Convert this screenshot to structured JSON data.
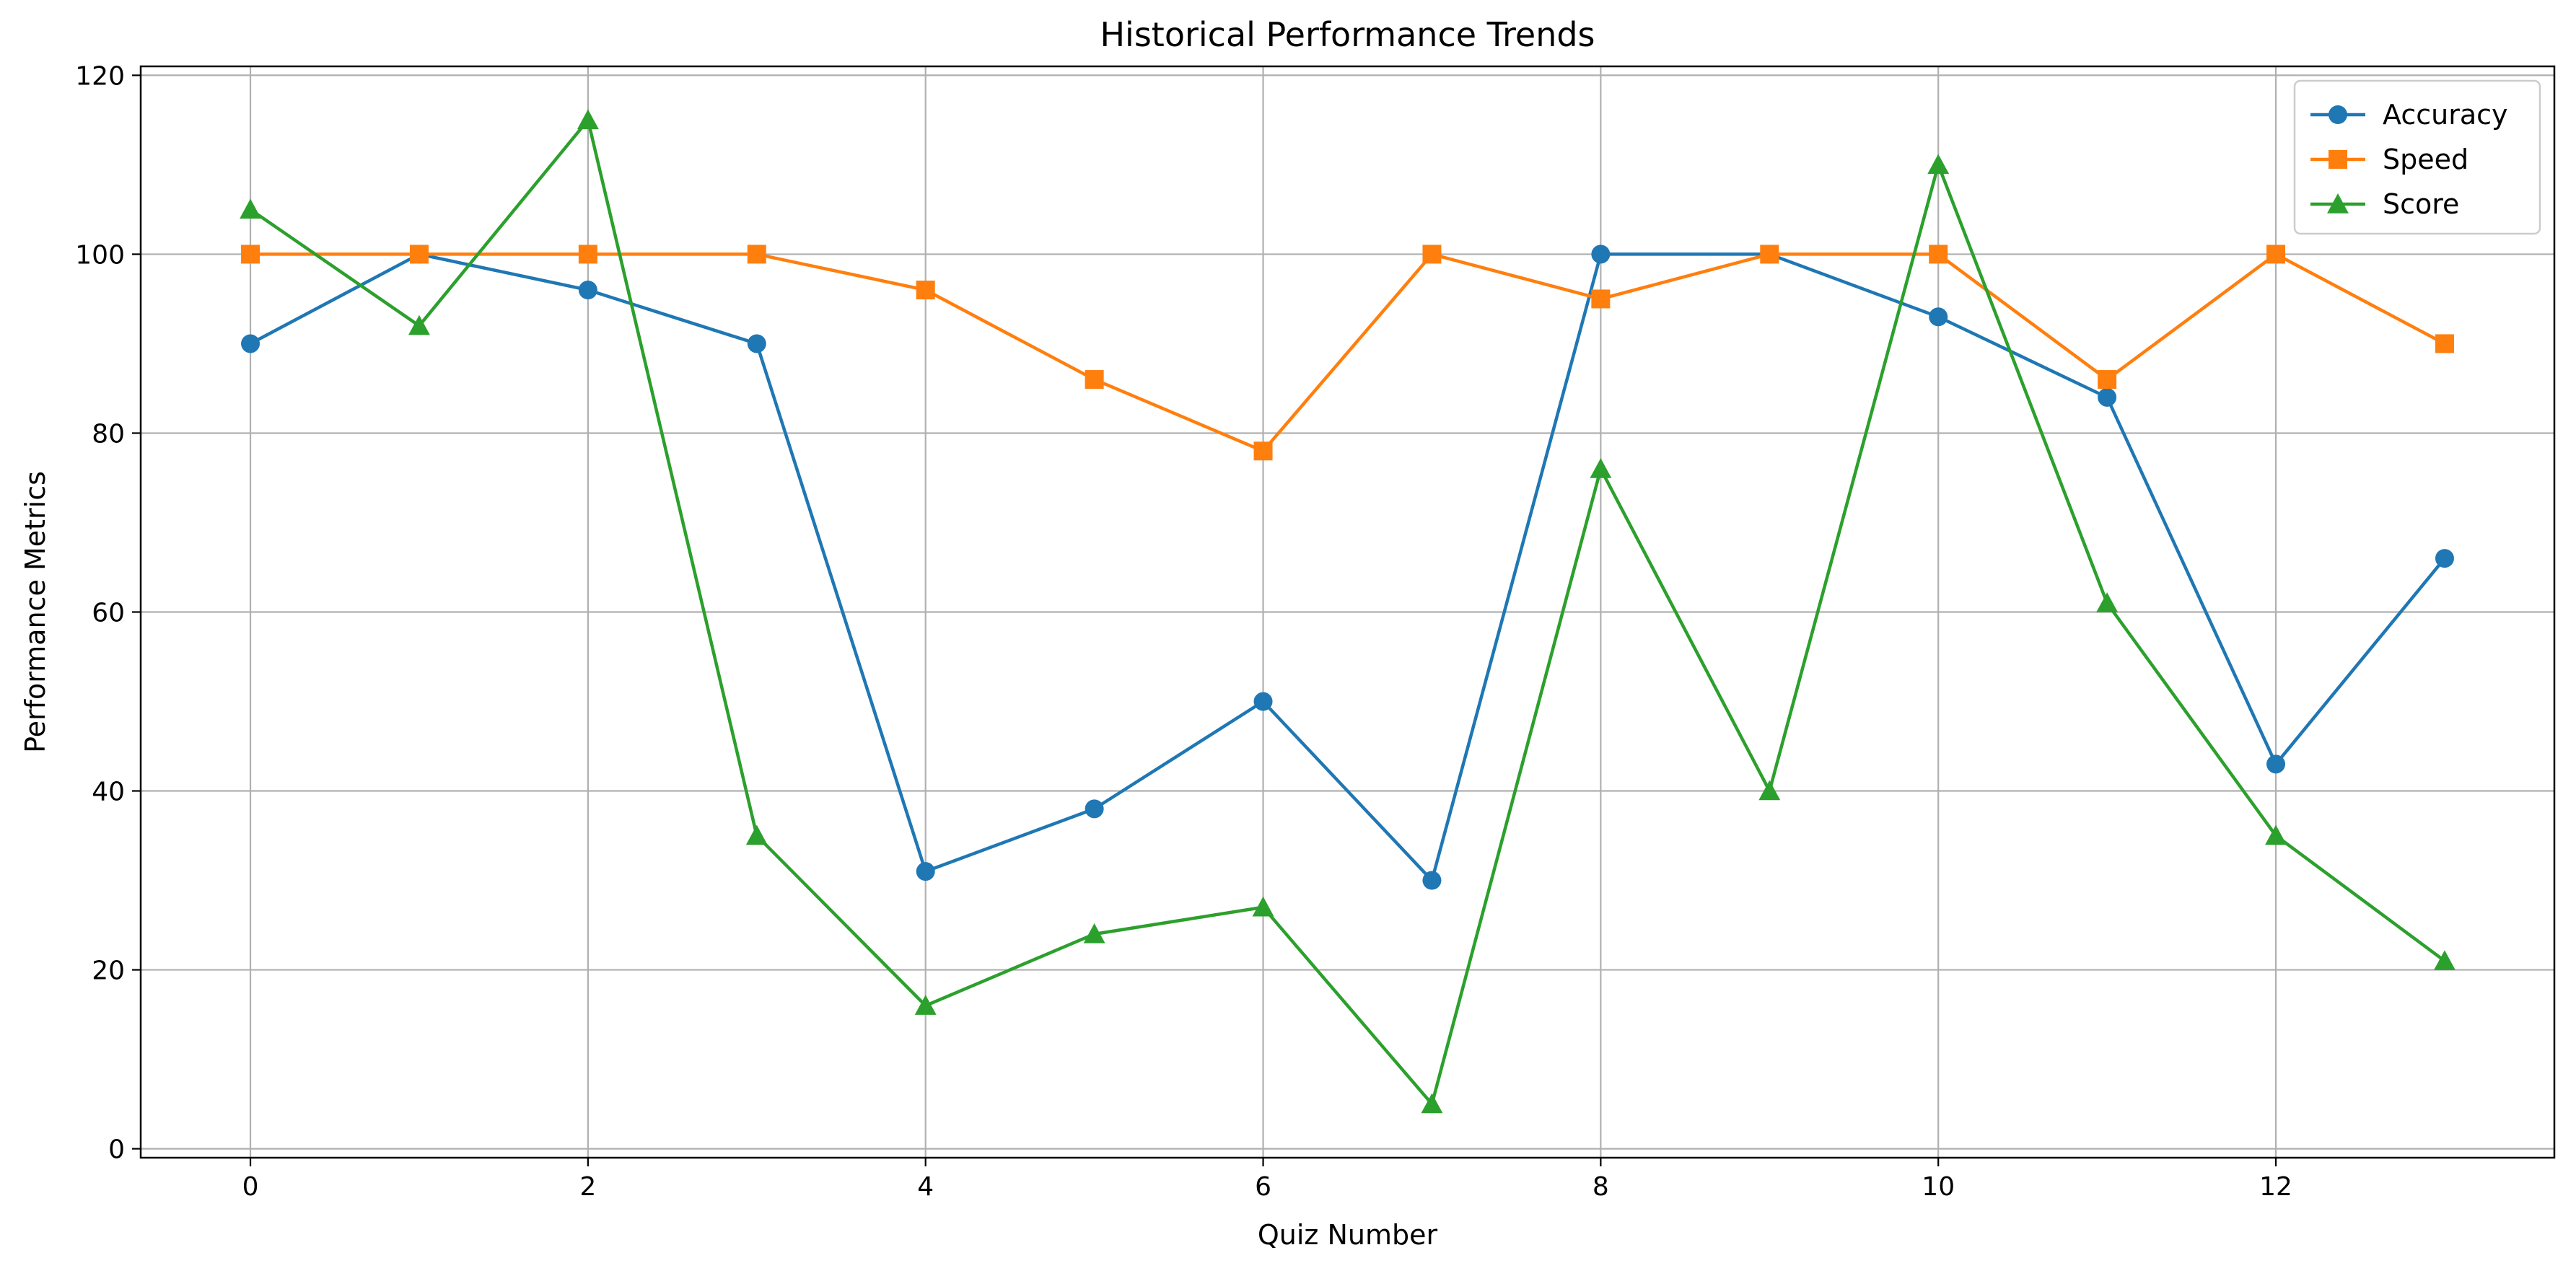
{
  "chart_data": {
    "type": "line",
    "title": "Historical Performance Trends",
    "xlabel": "Quiz Number",
    "ylabel": "Performance Metrics",
    "x": [
      0,
      1,
      2,
      3,
      4,
      5,
      6,
      7,
      8,
      9,
      10,
      11,
      12,
      13
    ],
    "xlim": [
      -0.65,
      13.65
    ],
    "ylim": [
      -1,
      121
    ],
    "xticks": [
      0,
      2,
      4,
      6,
      8,
      10,
      12
    ],
    "yticks": [
      0,
      20,
      40,
      60,
      80,
      100,
      120
    ],
    "grid": true,
    "legend_position": "top-right",
    "series": [
      {
        "name": "Accuracy",
        "color": "#1f77b4",
        "marker": "circle",
        "values": [
          90,
          100,
          96,
          90,
          31,
          38,
          50,
          30,
          100,
          100,
          93,
          84,
          43,
          66
        ]
      },
      {
        "name": "Speed",
        "color": "#ff7f0e",
        "marker": "square",
        "values": [
          100,
          100,
          100,
          100,
          96,
          86,
          78,
          100,
          95,
          100,
          100,
          86,
          100,
          90
        ]
      },
      {
        "name": "Score",
        "color": "#2ca02c",
        "marker": "triangle",
        "values": [
          105,
          92,
          115,
          35,
          16,
          24,
          27,
          5,
          76,
          40,
          110,
          61,
          35,
          21
        ]
      }
    ]
  }
}
